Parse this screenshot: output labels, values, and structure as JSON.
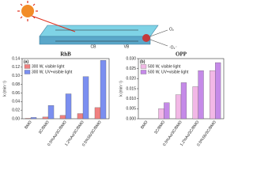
{
  "diagram": {
    "labels": [
      "CB",
      "VB",
      "O₂",
      "·O₂⁻"
    ]
  },
  "chart_data": [
    {
      "type": "bar",
      "title": "RhB",
      "panel": "(a)",
      "y_label": "k (min⁻¹)",
      "categories": [
        "BMO",
        "3C/BMO",
        "0.5%As/3C/BMO",
        "1.2%As/3C/BMO",
        "0.5%Sb/3C/BMO"
      ],
      "series": [
        {
          "name": "300 W, visible light",
          "color": "#f08080",
          "values": [
            0.001,
            0.004,
            0.008,
            0.012,
            0.026
          ]
        },
        {
          "name": "300 W, UV+visible light",
          "color": "#7b8ff0",
          "values": [
            0.003,
            0.031,
            0.058,
            0.098,
            0.136
          ]
        }
      ],
      "ylim": [
        0,
        0.14
      ],
      "yticks": [
        {
          "value": 0,
          "label": "0.00"
        },
        0.02,
        0.04,
        0.06,
        0.08,
        {
          "value": 0.1,
          "label": "0.10"
        },
        0.12,
        0.14
      ],
      "legend": "upper left"
    },
    {
      "type": "bar",
      "title": "OPP",
      "panel": "(b)",
      "y_label": "k (min⁻¹)",
      "categories": [
        "BMO",
        "3C/BMO",
        "0.5%As/3C/BMO",
        "1.2%As/3C/BMO",
        "0.5%Sb/3C/BMO"
      ],
      "series": [
        {
          "name": "500 W, visible light",
          "color": "#f2b8e6",
          "values": [
            0,
            0.005,
            0.012,
            0.016,
            0.024
          ]
        },
        {
          "name": "500 W, UV+visible light",
          "color": "#c58ae8",
          "values": [
            0,
            0.008,
            0.018,
            0.024,
            0.028
          ]
        }
      ],
      "ylim": [
        0,
        0.03
      ],
      "yticks": [
        {
          "value": 0,
          "label": "0.000"
        },
        0.005,
        {
          "value": 0.01,
          "label": "0.010"
        },
        0.015,
        {
          "value": 0.02,
          "label": "0.020"
        },
        0.025,
        {
          "value": 0.03,
          "label": "0.030"
        }
      ],
      "legend": "upper left"
    }
  ]
}
